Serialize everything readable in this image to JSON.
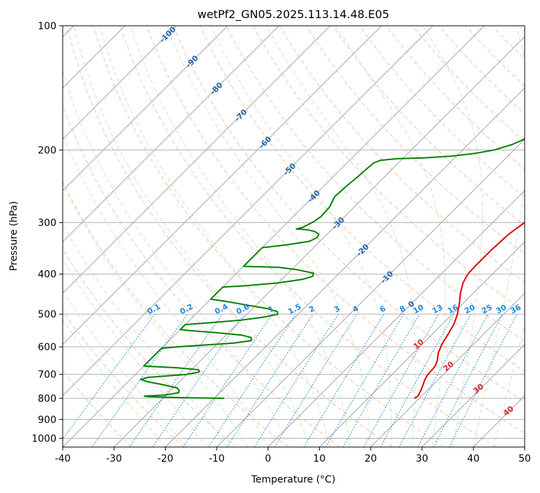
{
  "chart_data": {
    "type": "line",
    "subtype": "skew-t-log-p",
    "title": "wetPf2_GN05.2025.113.14.48.E05",
    "xlabel": "Temperature (°C)",
    "ylabel": "Pressure (hPa)",
    "xlim": [
      -40,
      50
    ],
    "ylim": [
      1050,
      100
    ],
    "y_scale": "log",
    "x_ticks": [
      -40,
      -30,
      -20,
      -10,
      0,
      10,
      20,
      30,
      40,
      50
    ],
    "y_ticks": [
      1000,
      900,
      800,
      700,
      600,
      500,
      400,
      300,
      200,
      100
    ],
    "grid": true,
    "colors": {
      "temperature": "#e00000",
      "dewpoint": "#008000",
      "isotherm": "#999999",
      "dry_adiabat": "#f4a582",
      "moist_adiabat": "#a1d99b",
      "mixing_ratio": "#1f8ae0",
      "isotherm_label": "#2166ac",
      "adiabat_label": "#d62728"
    },
    "series": [
      {
        "key": "temperature",
        "points": [
          [
            800,
            19.0
          ],
          [
            790,
            19.3
          ],
          [
            760,
            18.6
          ],
          [
            720,
            17.4
          ],
          [
            700,
            17.0
          ],
          [
            680,
            16.9
          ],
          [
            665,
            16.7
          ],
          [
            650,
            16.2
          ],
          [
            620,
            14.8
          ],
          [
            590,
            13.8
          ],
          [
            560,
            13.1
          ],
          [
            530,
            12.3
          ],
          [
            500,
            11.0
          ],
          [
            470,
            9.2
          ],
          [
            445,
            7.5
          ],
          [
            420,
            6.0
          ],
          [
            400,
            5.2
          ],
          [
            380,
            5.1
          ],
          [
            350,
            5.1
          ],
          [
            320,
            5.4
          ],
          [
            300,
            6.2
          ],
          [
            280,
            7.8
          ],
          [
            260,
            9.0
          ],
          [
            245,
            9.4
          ],
          [
            230,
            8.9
          ],
          [
            215,
            7.3
          ],
          [
            200,
            5.6
          ],
          [
            175,
            3.6
          ],
          [
            150,
            2.7
          ],
          [
            130,
            3.3
          ],
          [
            115,
            5.4
          ],
          [
            105,
            7.4
          ],
          [
            100,
            8.6
          ]
        ]
      },
      {
        "key": "dewpoint",
        "points": [
          [
            800,
            -18.0
          ],
          [
            798,
            -24.0
          ],
          [
            795,
            -30.0
          ],
          [
            793,
            -33.0
          ],
          [
            790,
            -34.0
          ],
          [
            785,
            -30.0
          ],
          [
            775,
            -28.0
          ],
          [
            765,
            -28.4
          ],
          [
            755,
            -29.2
          ],
          [
            740,
            -33.0
          ],
          [
            730,
            -36.0
          ],
          [
            720,
            -38.0
          ],
          [
            712,
            -37.0
          ],
          [
            705,
            -33.0
          ],
          [
            700,
            -30.0
          ],
          [
            690,
            -28.0
          ],
          [
            682,
            -28.6
          ],
          [
            675,
            -33.0
          ],
          [
            668,
            -40.0
          ],
          [
            660,
            -40.0
          ],
          [
            640,
            -40.0
          ],
          [
            620,
            -40.0
          ],
          [
            605,
            -40.0
          ],
          [
            600,
            -37.0
          ],
          [
            595,
            -33.0
          ],
          [
            588,
            -27.0
          ],
          [
            580,
            -24.0
          ],
          [
            570,
            -24.6
          ],
          [
            562,
            -27.0
          ],
          [
            555,
            -32.0
          ],
          [
            548,
            -38.0
          ],
          [
            545,
            -40.0
          ],
          [
            535,
            -40.0
          ],
          [
            530,
            -40.0
          ],
          [
            525,
            -36.0
          ],
          [
            517,
            -30.0
          ],
          [
            508,
            -26.0
          ],
          [
            500,
            -24.0
          ],
          [
            493,
            -24.6
          ],
          [
            485,
            -27.0
          ],
          [
            475,
            -32.0
          ],
          [
            465,
            -37.0
          ],
          [
            460,
            -40.0
          ],
          [
            440,
            -40.0
          ],
          [
            430,
            -40.0
          ],
          [
            427,
            -36.0
          ],
          [
            420,
            -30.0
          ],
          [
            412,
            -26.0
          ],
          [
            405,
            -24.6
          ],
          [
            398,
            -25.0
          ],
          [
            390,
            -29.0
          ],
          [
            385,
            -33.0
          ],
          [
            383,
            -40.0
          ],
          [
            360,
            -40.0
          ],
          [
            345,
            -40.0
          ],
          [
            340,
            -36.0
          ],
          [
            333,
            -32.0
          ],
          [
            326,
            -31.3
          ],
          [
            320,
            -31.6
          ],
          [
            315,
            -33.0
          ],
          [
            312,
            -35.0
          ],
          [
            311,
            -37.0
          ],
          [
            308,
            -36.0
          ],
          [
            298,
            -35.0
          ],
          [
            290,
            -34.6
          ],
          [
            275,
            -34.8
          ],
          [
            260,
            -35.8
          ],
          [
            245,
            -35.6
          ],
          [
            232,
            -35.2
          ],
          [
            222,
            -35.0
          ],
          [
            215,
            -34.8
          ],
          [
            212,
            -34.0
          ],
          [
            210,
            -31.0
          ],
          [
            209,
            -26.0
          ],
          [
            207,
            -21.0
          ],
          [
            204,
            -17.0
          ],
          [
            200,
            -13.8
          ],
          [
            194,
            -11.4
          ],
          [
            187,
            -9.8
          ],
          [
            178,
            -8.6
          ],
          [
            168,
            -8.0
          ],
          [
            156,
            -7.6
          ],
          [
            143,
            -7.4
          ],
          [
            132,
            -6.9
          ],
          [
            122,
            -6.2
          ],
          [
            114,
            -5.3
          ],
          [
            108,
            -3.6
          ],
          [
            104,
            -2.0
          ],
          [
            100,
            0.0
          ]
        ]
      }
    ],
    "isotherm_labels": [
      -100,
      -90,
      -80,
      -70,
      -60,
      -50,
      -40,
      -30,
      -20,
      -10,
      0
    ],
    "mixing_ratio_labels": [
      "0.1",
      "0.2",
      "0.4",
      "0.6",
      "1",
      "1.5",
      "2",
      "3",
      "4",
      "6",
      "8",
      "10",
      "13",
      "16",
      "20",
      "25",
      "30",
      "36"
    ],
    "moist_adiabat_labels": [
      "10",
      "20",
      "30",
      "40"
    ]
  }
}
